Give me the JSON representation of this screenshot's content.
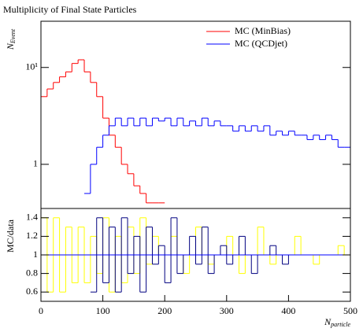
{
  "chart_data": [
    {
      "type": "histogram",
      "title": "Multiplicity of Final State Particles",
      "ylabel": {
        "main": "N",
        "sub": "Event"
      },
      "log_y": true,
      "bins": [
        0,
        10,
        20,
        30,
        40,
        50,
        60,
        70,
        80,
        90,
        100,
        110,
        120,
        130,
        140,
        150,
        160,
        170,
        180,
        190,
        200,
        210,
        220,
        230,
        240,
        250,
        260,
        270,
        280,
        290,
        300,
        310,
        320,
        330,
        340,
        350,
        360,
        370,
        380,
        390,
        400,
        410,
        420,
        430,
        440,
        450,
        460,
        470,
        480,
        490,
        500
      ],
      "series": [
        {
          "name": "MC (MinBias)",
          "color": "#ff0000",
          "values": [
            5,
            6,
            7,
            8,
            9,
            11,
            12,
            9,
            7,
            5,
            3,
            2,
            1.5,
            1,
            0.8,
            0.6,
            0.5,
            0.4,
            0.4,
            0.4,
            null,
            null,
            null,
            null,
            null,
            null,
            null,
            null,
            null,
            null,
            null,
            null,
            null,
            null,
            null,
            null,
            null,
            null,
            null,
            null,
            null,
            null,
            null,
            null,
            null,
            null,
            null,
            null,
            null,
            null
          ]
        },
        {
          "name": "MC (QCDjet)",
          "color": "#0000ff",
          "values": [
            null,
            null,
            null,
            null,
            null,
            null,
            null,
            0.5,
            1,
            1.5,
            2,
            2.5,
            3,
            2.5,
            3,
            2.5,
            3,
            2.5,
            3,
            2.8,
            3,
            2.5,
            3,
            2.5,
            2.8,
            2.5,
            3,
            2.5,
            2.8,
            2.5,
            2.5,
            2.2,
            2.5,
            2.2,
            2.5,
            2.2,
            2.5,
            2,
            2.2,
            2,
            2.2,
            2,
            2,
            1.8,
            2,
            1.8,
            2,
            1.8,
            1.5,
            1.5
          ]
        }
      ],
      "xlim": [
        0,
        500
      ],
      "ylim": [
        0.35,
        30
      ],
      "yticks": [
        1,
        {
          "value": 10,
          "label": "10¹"
        }
      ],
      "legend": "top-right"
    },
    {
      "type": "histogram",
      "ylabel": "MC/data",
      "xlabel": {
        "main": "N",
        "sub": "particle"
      },
      "bins": [
        0,
        10,
        20,
        30,
        40,
        50,
        60,
        70,
        80,
        90,
        100,
        110,
        120,
        130,
        140,
        150,
        160,
        170,
        180,
        190,
        200,
        210,
        220,
        230,
        240,
        250,
        260,
        270,
        280,
        290,
        300,
        310,
        320,
        330,
        340,
        350,
        360,
        370,
        380,
        390,
        400,
        410,
        420,
        430,
        440,
        450,
        460,
        470,
        480,
        490,
        500
      ],
      "series": [
        {
          "color": "#ffff00",
          "values": [
            1.4,
            0.6,
            1.4,
            0.6,
            1.3,
            0.7,
            1.3,
            0.7,
            1.2,
            0.8,
            1.4,
            0.6,
            1.2,
            0.7,
            1.3,
            0.8,
            1.4,
            0.9,
            1.2,
            1,
            1,
            1.2,
            1,
            0.8,
            1,
            1.3,
            1,
            0.9,
            1,
            1,
            1.2,
            1,
            0.8,
            1,
            1,
            1.3,
            1,
            0.9,
            1,
            1,
            1,
            1.2,
            1,
            1,
            0.9,
            1,
            1,
            1,
            1.1,
            1
          ]
        },
        {
          "color": "#000080",
          "values": [
            null,
            null,
            null,
            null,
            null,
            null,
            null,
            null,
            0.6,
            1.4,
            0.7,
            1.3,
            0.6,
            1.4,
            0.8,
            1.2,
            0.6,
            1.3,
            0.9,
            1.1,
            0.7,
            1.4,
            0.8,
            1,
            1.2,
            0.9,
            1.3,
            0.8,
            1,
            1.1,
            0.9,
            1,
            1.2,
            1,
            0.8,
            1,
            1,
            1.1,
            1,
            0.9,
            1,
            1,
            1,
            1,
            1,
            1,
            1,
            1,
            1,
            1
          ]
        }
      ],
      "reference": 1,
      "reference_color": "#0000ff",
      "xlim": [
        0,
        500
      ],
      "ylim": [
        0.5,
        1.5
      ],
      "xticks": [
        0,
        100,
        200,
        300,
        400,
        500
      ],
      "yticks": [
        0.6,
        0.8,
        1,
        1.2,
        1.4
      ]
    }
  ]
}
